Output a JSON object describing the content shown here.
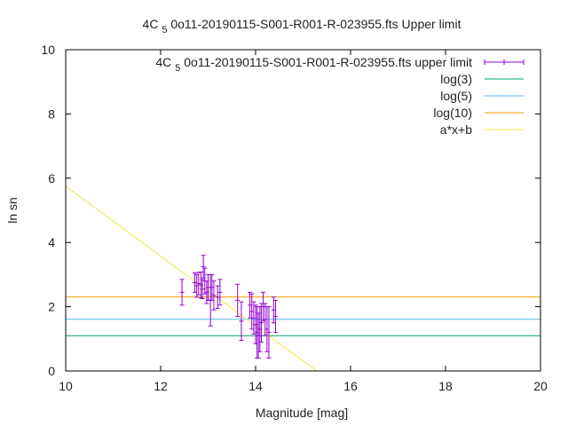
{
  "chart_data": {
    "type": "scatter",
    "title": "4C 5 0o11-20190115-S001-R001-R-023955.fts Upper limit",
    "title_parts": {
      "pre": "4C ",
      "sub": "5",
      "post": " 0o11-20190115-S001-R001-R-023955.fts Upper limit"
    },
    "xlabel": "Magnitude [mag]",
    "ylabel": "ln sn",
    "xlim": [
      10,
      20
    ],
    "ylim": [
      0,
      10
    ],
    "xticks": [
      "10",
      "12",
      "14",
      "16",
      "18",
      "20"
    ],
    "yticks": [
      "0",
      "2",
      "4",
      "6",
      "8",
      "10"
    ],
    "grid": false,
    "legend_position": "top-right",
    "series": [
      {
        "name": "4C 5 0o11-20190115-S001-R001-R-023955.fts upper limit",
        "name_parts": {
          "pre": "4C ",
          "sub": "5",
          "post": " 0o11-20190115-S001-R001-R-023955.fts upper limit"
        },
        "kind": "errorbars",
        "color": "#9400d3",
        "points": [
          {
            "x": 12.45,
            "y": 2.45,
            "err": 0.4
          },
          {
            "x": 12.72,
            "y": 2.75,
            "err": 0.3
          },
          {
            "x": 12.76,
            "y": 2.65,
            "err": 0.35
          },
          {
            "x": 12.8,
            "y": 2.72,
            "err": 0.35
          },
          {
            "x": 12.85,
            "y": 2.68,
            "err": 0.4
          },
          {
            "x": 12.88,
            "y": 2.55,
            "err": 0.3
          },
          {
            "x": 12.9,
            "y": 3.25,
            "err": 0.35
          },
          {
            "x": 12.93,
            "y": 2.8,
            "err": 0.4
          },
          {
            "x": 12.97,
            "y": 2.45,
            "err": 0.35
          },
          {
            "x": 13.0,
            "y": 2.6,
            "err": 0.4
          },
          {
            "x": 13.05,
            "y": 2.2,
            "err": 0.8
          },
          {
            "x": 13.08,
            "y": 2.6,
            "err": 0.4
          },
          {
            "x": 13.12,
            "y": 2.35,
            "err": 0.45
          },
          {
            "x": 13.2,
            "y": 2.3,
            "err": 0.35
          },
          {
            "x": 13.25,
            "y": 2.45,
            "err": 0.4
          },
          {
            "x": 13.62,
            "y": 2.2,
            "err": 0.5
          },
          {
            "x": 13.7,
            "y": 1.55,
            "err": 0.6
          },
          {
            "x": 13.88,
            "y": 2.05,
            "err": 0.4
          },
          {
            "x": 13.92,
            "y": 1.85,
            "err": 0.55
          },
          {
            "x": 13.96,
            "y": 1.65,
            "err": 0.5
          },
          {
            "x": 14.0,
            "y": 1.45,
            "err": 0.6
          },
          {
            "x": 14.03,
            "y": 1.2,
            "err": 0.8
          },
          {
            "x": 14.06,
            "y": 1.1,
            "err": 0.7
          },
          {
            "x": 14.09,
            "y": 1.3,
            "err": 0.7
          },
          {
            "x": 14.12,
            "y": 1.5,
            "err": 0.6
          },
          {
            "x": 14.16,
            "y": 2.0,
            "err": 0.45
          },
          {
            "x": 14.2,
            "y": 1.6,
            "err": 0.5
          },
          {
            "x": 14.24,
            "y": 1.3,
            "err": 0.7
          },
          {
            "x": 14.28,
            "y": 1.2,
            "err": 0.8
          },
          {
            "x": 14.38,
            "y": 1.9,
            "err": 0.4
          },
          {
            "x": 14.42,
            "y": 1.7,
            "err": 0.5
          }
        ]
      },
      {
        "name": "log(3)",
        "kind": "hline",
        "y": 1.0986,
        "color": "#009e73"
      },
      {
        "name": "log(5)",
        "kind": "hline",
        "y": 1.6094,
        "color": "#56b4e9"
      },
      {
        "name": "log(10)",
        "kind": "hline",
        "y": 2.3026,
        "color": "#e69f00"
      },
      {
        "name": "a*x+b",
        "kind": "fitline",
        "x": [
          10,
          15.29
        ],
        "y": [
          5.75,
          0
        ],
        "color": "#f0e442"
      }
    ]
  }
}
